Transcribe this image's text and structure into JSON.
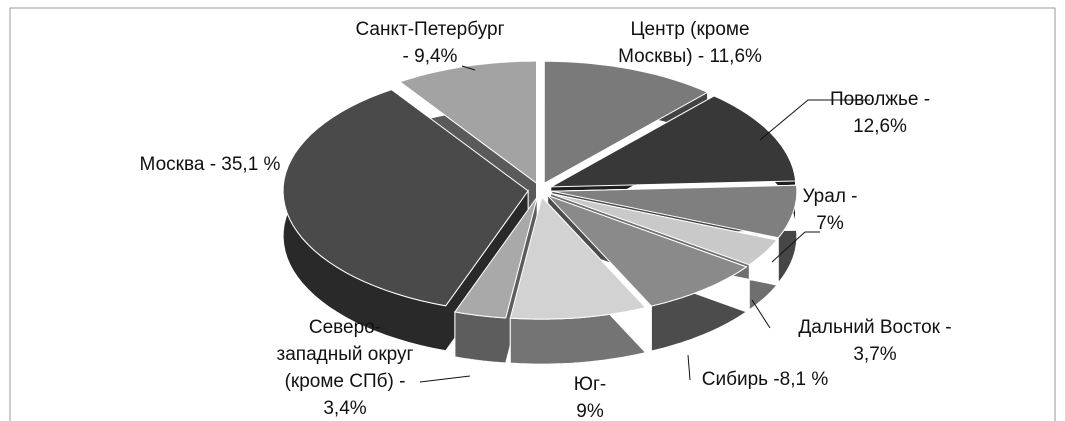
{
  "chart_data": {
    "type": "pie",
    "categories": [
      [
        "Центр (кроме",
        "Москвы) - 11,6%"
      ],
      [
        "Поволжье -",
        "12,6%"
      ],
      [
        "Урал -",
        "7%"
      ],
      [
        "Дальний Восток -",
        "3,7%"
      ],
      [
        "Сибирь -8,1 %"
      ],
      [
        "Юг-",
        "9%"
      ],
      [
        "Северо-",
        "западный округ",
        "(кроме СПб) -",
        "3,4%"
      ],
      [
        "Москва  - 35,1 %"
      ],
      [
        "Санкт-Петербург",
        "- 9,4%"
      ]
    ],
    "values": [
      11.6,
      12.6,
      7,
      3.7,
      8.1,
      9,
      3.4,
      35.1,
      9.4
    ],
    "colors": [
      "#7a7a7a",
      "#383838",
      "#7f7f7f",
      "#c9c9c9",
      "#8a8a8a",
      "#d2d2d2",
      "#a9a9a9",
      "#4a4a4a",
      "#a3a3a3"
    ]
  }
}
